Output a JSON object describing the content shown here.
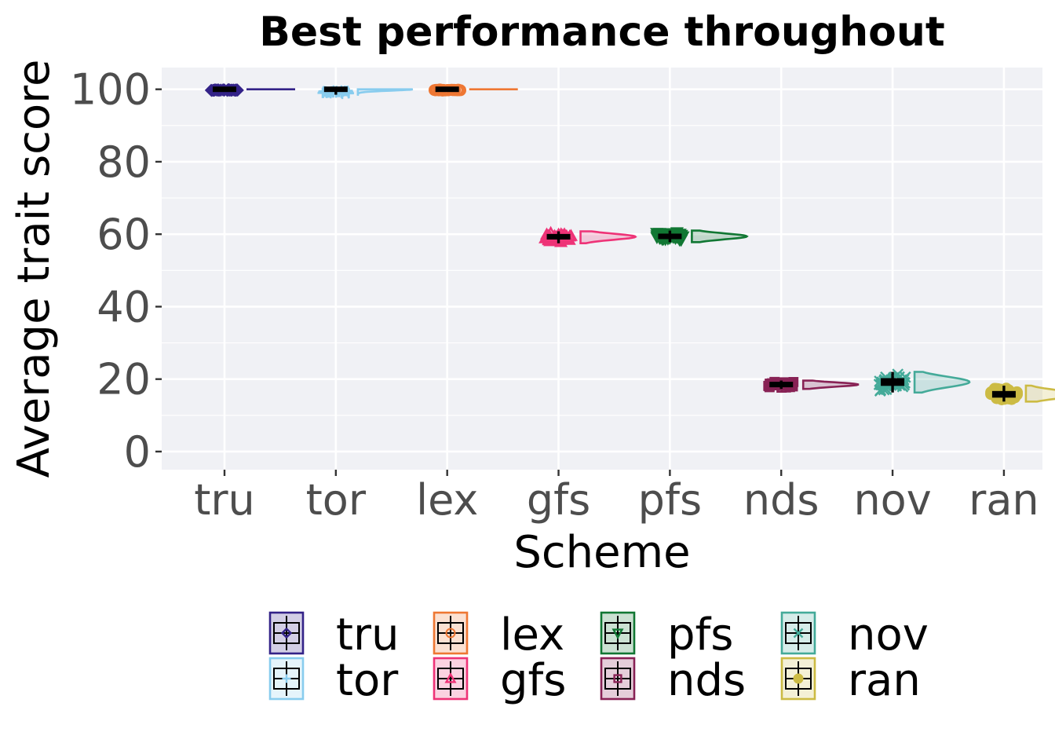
{
  "chart_data": {
    "type": "raincloud",
    "title": "Best performance throughout",
    "xlabel": "Scheme",
    "ylabel": "Average trait score",
    "ylim": [
      -5,
      106
    ],
    "yticks": [
      0,
      20,
      40,
      60,
      80,
      100
    ],
    "categories": [
      "tru",
      "tor",
      "lex",
      "gfs",
      "pfs",
      "nds",
      "nov",
      "ran"
    ],
    "series": [
      {
        "name": "tru",
        "color": "#332288",
        "marker": "diamond",
        "median": 100.0,
        "q1": 99.9,
        "q3": 100.0,
        "min": 99.6,
        "max": 100.0
      },
      {
        "name": "tor",
        "color": "#88CCEE",
        "marker": "plus",
        "median": 100.0,
        "q1": 99.5,
        "q3": 100.0,
        "min": 98.5,
        "max": 100.0
      },
      {
        "name": "lex",
        "color": "#EE7733",
        "marker": "circle",
        "median": 100.0,
        "q1": 99.9,
        "q3": 100.0,
        "min": 99.6,
        "max": 100.0
      },
      {
        "name": "gfs",
        "color": "#EE3377",
        "marker": "triangle",
        "median": 59.3,
        "q1": 58.7,
        "q3": 59.8,
        "min": 57.5,
        "max": 60.8
      },
      {
        "name": "pfs",
        "color": "#117733",
        "marker": "triangle-down",
        "median": 59.4,
        "q1": 58.9,
        "q3": 59.9,
        "min": 57.8,
        "max": 61.0
      },
      {
        "name": "nds",
        "color": "#882255",
        "marker": "square",
        "median": 18.5,
        "q1": 18.1,
        "q3": 18.9,
        "min": 17.3,
        "max": 19.6
      },
      {
        "name": "nov",
        "color": "#44AA99",
        "marker": "x",
        "median": 19.2,
        "q1": 18.3,
        "q3": 20.0,
        "min": 16.3,
        "max": 22.0
      },
      {
        "name": "ran",
        "color": "#CCBB44",
        "marker": "dot",
        "median": 15.8,
        "q1": 15.1,
        "q3": 16.5,
        "min": 13.8,
        "max": 18.2
      }
    ],
    "legend_position": "bottom",
    "grid": true
  }
}
